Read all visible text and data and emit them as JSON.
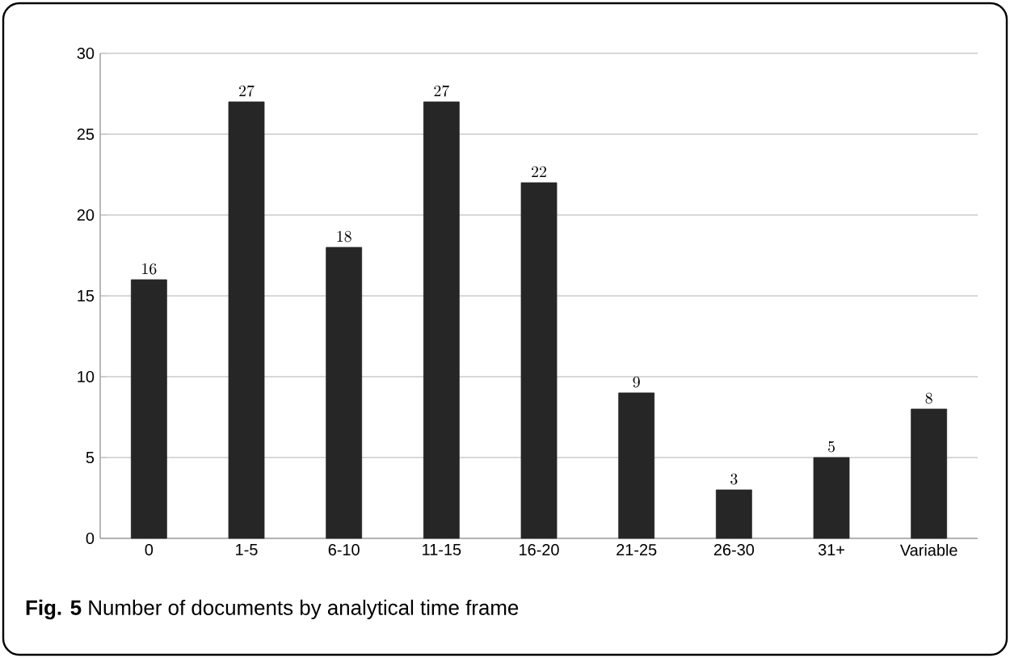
{
  "chart_data": {
    "type": "bar",
    "title": "**Fig. 5** Number of documents by analytical time frame",
    "categories": [
      "0",
      "1-5",
      "6-10",
      "11-15",
      "16-20",
      "21-25",
      "26-30",
      "31+",
      "Variable"
    ],
    "values": [
      16,
      27,
      18,
      27,
      22,
      9,
      3,
      5,
      8
    ],
    "color": "#262626",
    "ylim": [
      0,
      30
    ],
    "yticks": [
      0,
      5,
      10,
      15,
      20,
      25,
      30
    ],
    "grid": "y",
    "data_labels": true
  }
}
